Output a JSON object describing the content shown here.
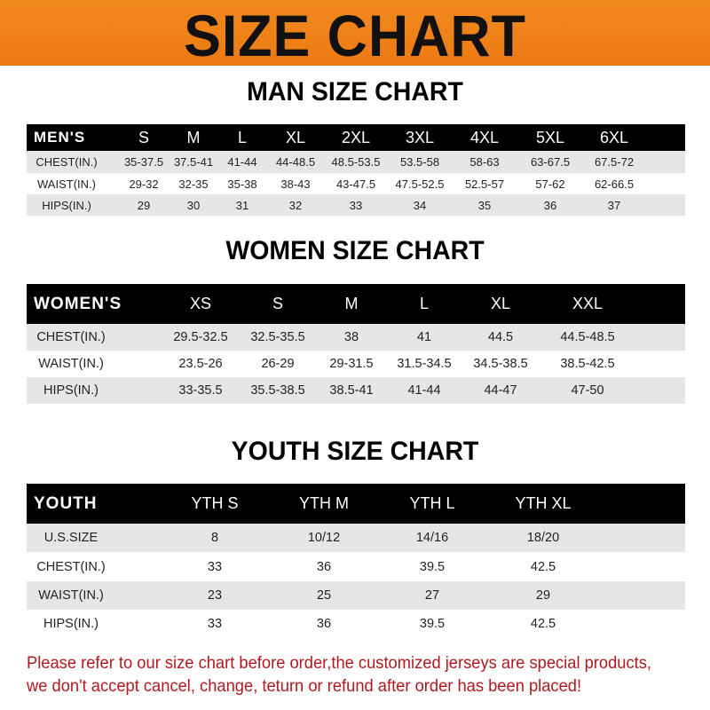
{
  "banner_title": "SIZE CHART",
  "men": {
    "title": "MAN SIZE CHART",
    "header": [
      "MEN'S",
      "S",
      "M",
      "L",
      "XL",
      "2XL",
      "3XL",
      "4XL",
      "5XL",
      "6XL"
    ],
    "rows": [
      [
        "CHEST(IN.)",
        "35-37.5",
        "37.5-41",
        "41-44",
        "44-48.5",
        "48.5-53.5",
        "53.5-58",
        "58-63",
        "63-67.5",
        "67.5-72"
      ],
      [
        "WAIST(IN.)",
        "29-32",
        "32-35",
        "35-38",
        "38-43",
        "43-47.5",
        "47.5-52.5",
        "52.5-57",
        "57-62",
        "62-66.5"
      ],
      [
        "HIPS(IN.)",
        "29",
        "30",
        "31",
        "32",
        "33",
        "34",
        "35",
        "36",
        "37"
      ]
    ]
  },
  "women": {
    "title": "WOMEN SIZE CHART",
    "header": [
      "WOMEN'S",
      "XS",
      "S",
      "M",
      "L",
      "XL",
      "XXL"
    ],
    "rows": [
      [
        "CHEST(IN.)",
        "29.5-32.5",
        "32.5-35.5",
        "38",
        "41",
        "44.5",
        "44.5-48.5"
      ],
      [
        "WAIST(IN.)",
        "23.5-26",
        "26-29",
        "29-31.5",
        "31.5-34.5",
        "34.5-38.5",
        "38.5-42.5"
      ],
      [
        "HIPS(IN.)",
        "33-35.5",
        "35.5-38.5",
        "38.5-41",
        "41-44",
        "44-47",
        "47-50"
      ]
    ]
  },
  "youth": {
    "title": "YOUTH SIZE CHART",
    "header": [
      "YOUTH",
      "YTH S",
      "YTH M",
      "YTH L",
      "YTH XL"
    ],
    "rows": [
      [
        "U.S.SIZE",
        "8",
        "10/12",
        "14/16",
        "18/20"
      ],
      [
        "CHEST(IN.)",
        "33",
        "36",
        "39.5",
        "42.5"
      ],
      [
        "WAIST(IN.)",
        "23",
        "25",
        "27",
        "29"
      ],
      [
        "HIPS(IN.)",
        "33",
        "36",
        "39.5",
        "42.5"
      ]
    ]
  },
  "note": [
    "Please refer to our size chart before order,the customized jerseys are special products,",
    "we don't accept cancel, change, teturn or refund after order has been placed!"
  ],
  "colors": {
    "banner": "#ef8318",
    "header_bg": "#000000",
    "row_gray": "#e6e6e6",
    "note": "#b0191e"
  }
}
